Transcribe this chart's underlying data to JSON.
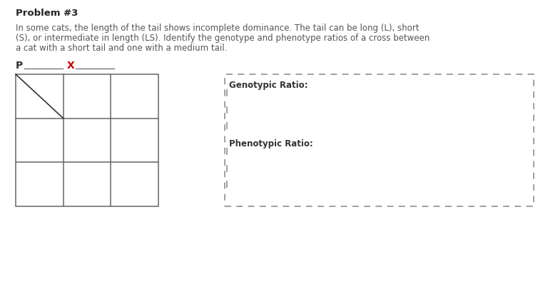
{
  "title": "Problem #3",
  "body_line1": "In some cats, the length of the tail shows incomplete dominance. The tail can be long (L), short",
  "body_line2": "(S), or intermediate in length (LS). Identify the genotype and phenotype ratios of a cross between",
  "body_line3": "a cat with a short tail and one with a medium tail.",
  "p_label": "P",
  "x_label": "X",
  "p_label_color": "#333333",
  "x_label_color": "#cc0000",
  "background_color": "#ffffff",
  "text_color": "#555555",
  "grid_color": "#666666",
  "dashed_box_color": "#999999",
  "genotypic_ratio_label": "Genotypic Ratio:",
  "phenotypic_ratio_label": "Phenotypic Ratio:",
  "label_fontsize": 8.5,
  "body_fontsize": 8.5,
  "title_fontsize": 9.5
}
